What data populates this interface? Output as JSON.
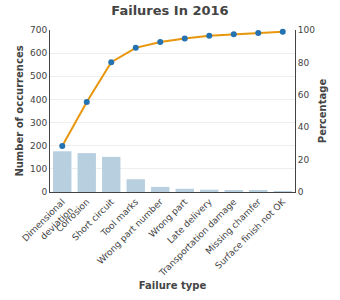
{
  "chart_data": {
    "type": "bar",
    "title": "Failures In 2016",
    "x_label": "Failure type",
    "y_label": "Number of occurrences",
    "y2_label": "Percentage",
    "categories": [
      "Dimensional\ndeviation",
      "Corrosion",
      "Short circuit",
      "Tool marks",
      "Wrong part number",
      "Wrong part",
      "Late delivery",
      "Transportation damage",
      "Missing chamfer",
      "Surface finish not OK"
    ],
    "series": [
      {
        "type": "bar",
        "color": "#b8cfe0",
        "values": [
          176,
          168,
          152,
          55,
          22,
          14,
          10,
          6,
          5,
          4
        ]
      },
      {
        "type": "line",
        "axis": "y2",
        "color": "#e8960a",
        "marker": "circle",
        "colors": [
          "#2472b0",
          "#2472b0",
          "#2472b0",
          "#2472b0",
          "#2472b0",
          "#2472b0",
          "#2472b0",
          "#2472b0",
          "#2472b0",
          "#2472b0"
        ],
        "values": [
          28.4,
          55.5,
          80.1,
          89.0,
          92.6,
          94.8,
          96.5,
          97.4,
          98.2,
          98.9
        ]
      }
    ],
    "ylim": [
      0,
      700
    ],
    "yticks": [
      0,
      100,
      200,
      300,
      400,
      500,
      600,
      700
    ],
    "y2lim": [
      0,
      100
    ],
    "y2ticks": [
      0,
      20,
      40,
      60,
      80,
      100
    ],
    "grid": true
  }
}
